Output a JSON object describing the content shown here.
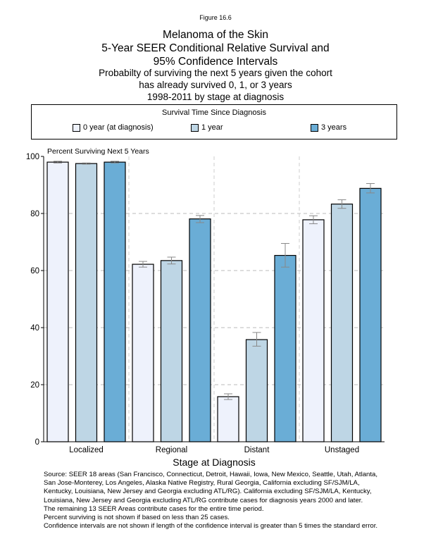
{
  "figure_label": "Figure 16.6",
  "chart_data": {
    "type": "bar",
    "title_lines": [
      "Melanoma of the Skin",
      "5-Year SEER Conditional Relative Survival and",
      "95% Confidence Intervals"
    ],
    "subtitle_lines": [
      "Probabilty of surviving the next 5 years given the cohort",
      "has already survived 0, 1, or 3 years",
      "1998-2011 by stage at diagnosis"
    ],
    "legend_title": "Survival Time Since Diagnosis",
    "legend_placement": "top",
    "ylabel": "Percent Surviving Next 5 Years",
    "xlabel": "Stage at Diagnosis",
    "ylim": [
      0,
      100
    ],
    "yticks": [
      0,
      20,
      40,
      60,
      80,
      100
    ],
    "grid": true,
    "categories": [
      "Localized",
      "Regional",
      "Distant",
      "Unstaged"
    ],
    "series": [
      {
        "name": "0 year (at diagnosis)",
        "color": "#eef2fc",
        "values": [
          98.0,
          62.2,
          15.8,
          77.8
        ],
        "ci_low": [
          97.7,
          61.2,
          14.8,
          76.4
        ],
        "ci_high": [
          98.3,
          63.2,
          16.8,
          79.2
        ]
      },
      {
        "name": "1 year",
        "color": "#bed6e5",
        "values": [
          97.5,
          63.5,
          35.8,
          83.3
        ],
        "ci_low": [
          97.3,
          62.3,
          33.5,
          81.8
        ],
        "ci_high": [
          97.7,
          64.7,
          38.3,
          84.8
        ]
      },
      {
        "name": "3 years",
        "color": "#6aadd6",
        "values": [
          98.0,
          78.1,
          65.3,
          88.8
        ],
        "ci_low": [
          97.7,
          76.8,
          61.2,
          87.2
        ],
        "ci_high": [
          98.3,
          79.3,
          69.5,
          90.5
        ]
      }
    ]
  },
  "notes": "Source:  SEER 18 areas (San Francisco, Connecticut, Detroit, Hawaii, Iowa, New Mexico, Seattle, Utah, Atlanta,\nSan Jose-Monterey, Los Angeles, Alaska Native Registry, Rural Georgia, California excluding SF/SJM/LA,\nKentucky, Louisiana, New Jersey and Georgia excluding ATL/RG). California excluding SF/SJM/LA, Kentucky,\nLouisiana, New Jersey and Georgia excluding ATL/RG contribute cases for diagnosis years 2000 and later.\nThe remaining 13 SEER Areas contribute cases for the entire time period.\nPercent surviving is not shown if based on less than 25 cases.\nConfidence intervals are not shown if length of the confidence interval is greater than 5 times the standard error."
}
